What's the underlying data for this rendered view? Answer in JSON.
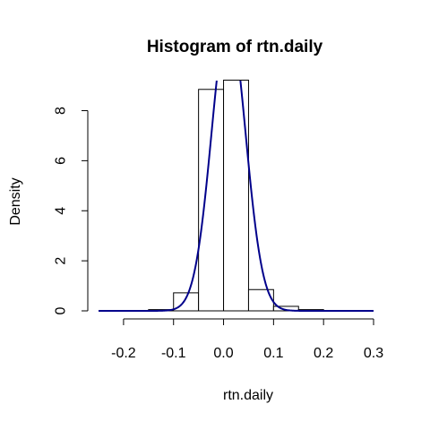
{
  "chart_data": {
    "type": "bar",
    "title": "Histogram of rtn.daily",
    "xlabel": "rtn.daily",
    "ylabel": "Density",
    "xlim": [
      -0.25,
      0.3
    ],
    "ylim": [
      0,
      9.2
    ],
    "x_ticks": [
      -0.2,
      -0.1,
      0.0,
      0.1,
      0.2,
      0.3
    ],
    "x_tick_labels": [
      "-0.2",
      "-0.1",
      "0.0",
      "0.1",
      "0.2",
      "0.3"
    ],
    "y_ticks": [
      0,
      2,
      4,
      6,
      8
    ],
    "y_tick_labels": [
      "0",
      "2",
      "4",
      "6",
      "8"
    ],
    "bins": [
      {
        "x0": -0.15,
        "x1": -0.1,
        "density": 0.05
      },
      {
        "x0": -0.1,
        "x1": -0.05,
        "density": 0.72
      },
      {
        "x0": -0.05,
        "x1": 0.0,
        "density": 8.85
      },
      {
        "x0": 0.0,
        "x1": 0.05,
        "density": 9.22
      },
      {
        "x0": 0.05,
        "x1": 0.1,
        "density": 0.85
      },
      {
        "x0": 0.1,
        "x1": 0.15,
        "density": 0.18
      },
      {
        "x0": 0.15,
        "x1": 0.2,
        "density": 0.05
      }
    ],
    "density_curve": {
      "color": "#00008b",
      "mean": 0.01,
      "sd": 0.034,
      "x_range": [
        -0.25,
        0.3
      ]
    },
    "grid": false
  }
}
